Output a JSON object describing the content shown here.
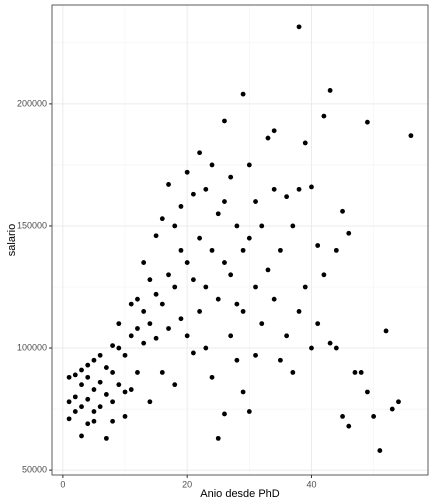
{
  "chart_data": {
    "type": "scatter",
    "x_label": "Anio desde PhD",
    "y_label": "salario",
    "color": "#000000",
    "grid": true,
    "xlim": [
      -1.75,
      58.75
    ],
    "ylim": [
      48000,
      240500
    ],
    "xticks": [
      0,
      20,
      40
    ],
    "yticks": [
      50000,
      100000,
      150000,
      200000
    ],
    "minor_xticks": [
      10,
      30,
      50
    ],
    "minor_yticks": [
      75000,
      125000,
      175000,
      225000
    ],
    "x": [
      1,
      1,
      1,
      2,
      2,
      2,
      3,
      3,
      3,
      3,
      4,
      4,
      4,
      4,
      5,
      5,
      5,
      5,
      6,
      6,
      6,
      7,
      7,
      7,
      8,
      8,
      8,
      8,
      9,
      9,
      9,
      10,
      10,
      10,
      11,
      11,
      11,
      12,
      12,
      12,
      13,
      13,
      13,
      14,
      14,
      14,
      15,
      15,
      15,
      16,
      16,
      16,
      17,
      17,
      17,
      18,
      18,
      18,
      19,
      19,
      19,
      20,
      20,
      20,
      21,
      21,
      21,
      22,
      22,
      22,
      23,
      23,
      23,
      24,
      24,
      24,
      25,
      25,
      25,
      26,
      26,
      26,
      27,
      27,
      27,
      28,
      28,
      28,
      29,
      29,
      29,
      30,
      30,
      30,
      31,
      31,
      31,
      32,
      32,
      33,
      33,
      34,
      34,
      35,
      35,
      36,
      36,
      37,
      37,
      38,
      38,
      39,
      39,
      40,
      40,
      41,
      41,
      42,
      42,
      43,
      43,
      44,
      44,
      45,
      45,
      46,
      46,
      47,
      48,
      49,
      49,
      50,
      51,
      52,
      53,
      54,
      56,
      38,
      29,
      26,
      34
    ],
    "values": [
      88000,
      78000,
      71000,
      89000,
      80000,
      74000,
      91000,
      85000,
      76000,
      64000,
      93000,
      88000,
      79000,
      69000,
      95000,
      83000,
      74000,
      70000,
      97000,
      86000,
      76000,
      92000,
      81000,
      63000,
      101000,
      90000,
      78000,
      70000,
      110000,
      100000,
      85000,
      97000,
      82000,
      72000,
      118000,
      105000,
      83000,
      120000,
      108000,
      90000,
      135000,
      115000,
      102000,
      128000,
      110000,
      78000,
      146000,
      122000,
      104000,
      153000,
      118000,
      90000,
      167000,
      130000,
      108000,
      150000,
      125000,
      85000,
      158000,
      140000,
      112000,
      172000,
      135000,
      105000,
      163000,
      128000,
      98000,
      180000,
      145000,
      115000,
      165000,
      125000,
      100000,
      175000,
      140000,
      88000,
      155000,
      120000,
      63000,
      160000,
      135000,
      73000,
      170000,
      130000,
      105000,
      150000,
      118000,
      95000,
      140000,
      115000,
      82000,
      175000,
      145000,
      74000,
      160000,
      125000,
      97000,
      150000,
      110000,
      186000,
      132000,
      165000,
      120000,
      140000,
      95000,
      162000,
      105000,
      150000,
      90000,
      165000,
      115000,
      184000,
      125000,
      166000,
      100000,
      142000,
      110000,
      195000,
      130000,
      205500,
      102000,
      140000,
      100000,
      156000,
      72000,
      147000,
      68000,
      90000,
      90000,
      192500,
      82000,
      72000,
      58000,
      107000,
      75000,
      78000,
      187000,
      231545,
      204000,
      193000,
      189000
    ]
  }
}
